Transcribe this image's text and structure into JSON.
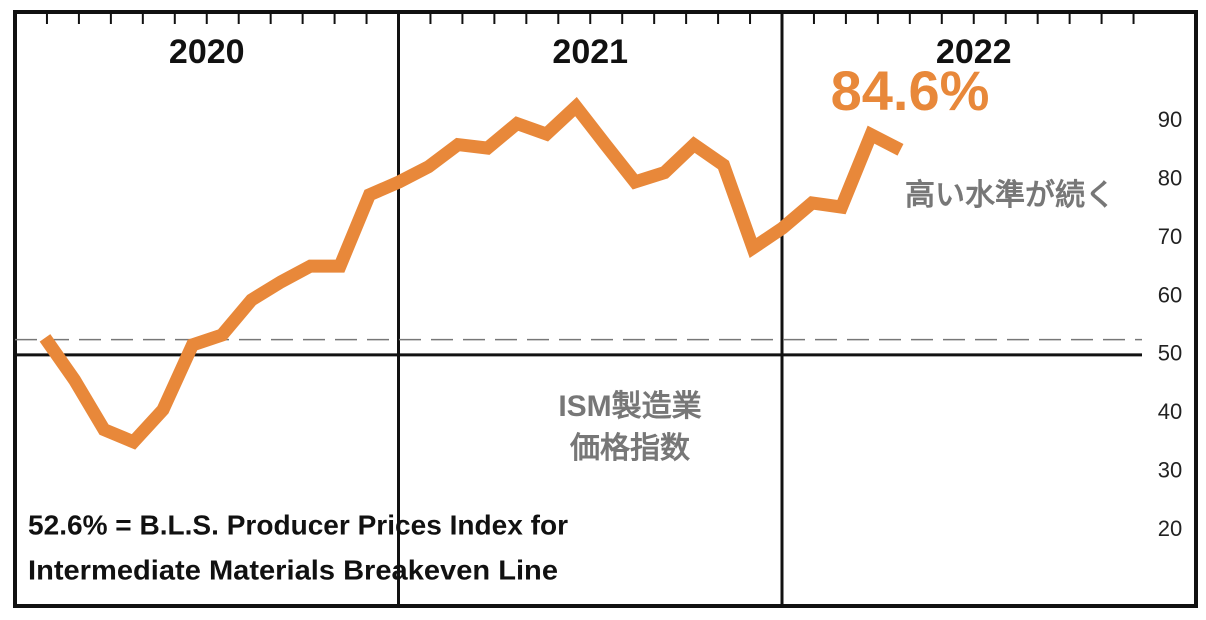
{
  "chart_data": {
    "type": "line",
    "year_labels": [
      "2020",
      "2021",
      "2022"
    ],
    "categories": [
      null,
      null,
      null,
      null,
      null,
      null,
      null,
      null,
      null,
      null,
      null,
      null,
      null,
      null,
      null,
      null,
      null,
      null,
      null,
      null,
      null,
      null,
      null,
      null,
      null,
      null,
      null,
      null,
      null,
      null
    ],
    "values": [
      52.9,
      45.7,
      37.2,
      35.1,
      40.6,
      51.7,
      53.4,
      59.4,
      62.5,
      65.2,
      65.2,
      77.4,
      79.6,
      82.2,
      86,
      85.4,
      89.6,
      87.8,
      92.5,
      86,
      79.6,
      81.2,
      86,
      82.5,
      68.3,
      71.7,
      76,
      75.3,
      87.7,
      85.1
    ],
    "color": "#e8883a",
    "ylim": [
      7,
      108.7
    ],
    "yticks": [
      20,
      30,
      40,
      50,
      60,
      70,
      80,
      90
    ],
    "reference_lines": [
      {
        "value": 50,
        "style": "solid"
      },
      {
        "value": 52.6,
        "style": "dashed"
      }
    ],
    "highlight_label": "84.6%",
    "annotation": "高い水準が続く",
    "series_label": [
      "ISM製造業",
      "価格指数"
    ],
    "footnote": [
      "52.6% = B.L.S. Producer Prices Index for",
      "Intermediate Materials Breakeven Line"
    ]
  }
}
